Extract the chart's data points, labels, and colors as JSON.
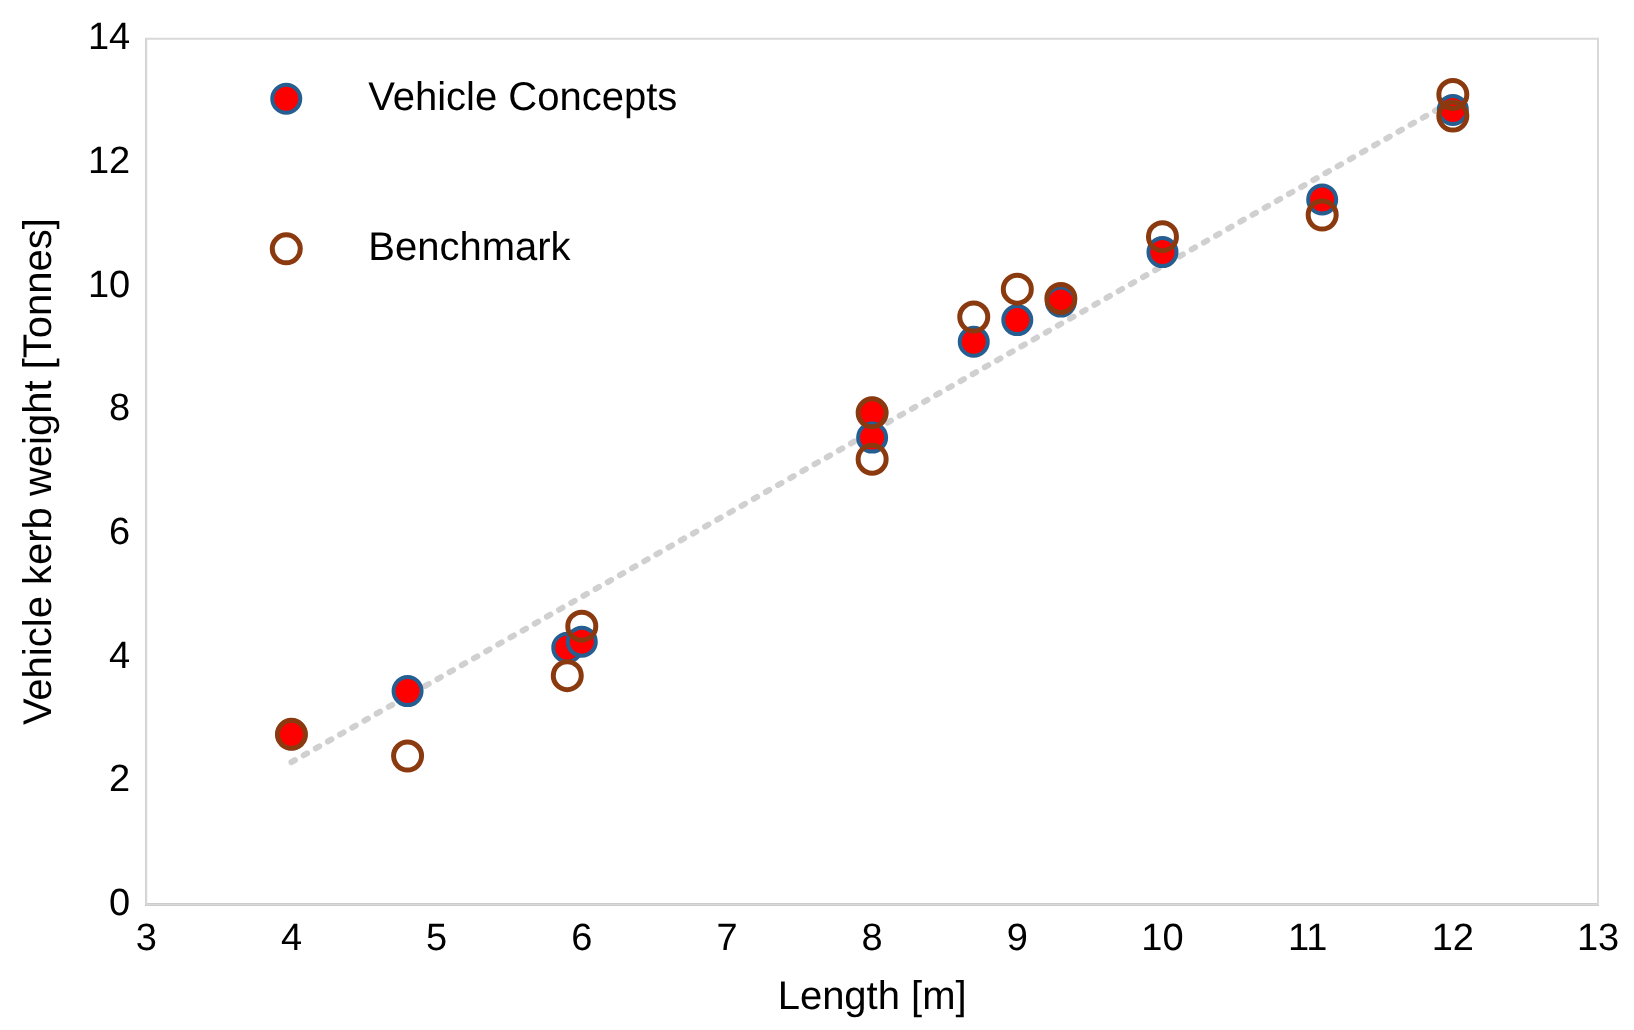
{
  "chart_data": {
    "type": "scatter",
    "xlabel": "Length [m]",
    "ylabel": "Vehicle kerb weight [Tonnes]",
    "xlim": [
      3,
      13
    ],
    "xticks": [
      3,
      4,
      5,
      6,
      7,
      8,
      9,
      10,
      11,
      12,
      13
    ],
    "ylim": [
      0,
      14
    ],
    "yticks": [
      0,
      2,
      4,
      6,
      8,
      10,
      12,
      14
    ],
    "grid": false,
    "legend": "top left",
    "marker": "circle",
    "series": [
      {
        "name": "Vehicle Concepts",
        "color": "#ff0000",
        "x": [
          4,
          4.8,
          5.9,
          6,
          8,
          8,
          8.7,
          9,
          9.3,
          10,
          11.1,
          12
        ],
        "values": [
          2.75,
          3.45,
          4.15,
          4.25,
          7.95,
          7.55,
          9.1,
          9.45,
          9.75,
          10.55,
          11.4,
          12.85
        ]
      },
      {
        "name": "Benchmark",
        "color": "#8b3a0f",
        "x": [
          4,
          4.8,
          5.9,
          6,
          8,
          8,
          8.7,
          9,
          9.3,
          10,
          11.1,
          12,
          12
        ],
        "values": [
          2.75,
          2.4,
          3.7,
          4.5,
          7.95,
          7.2,
          9.5,
          9.95,
          9.8,
          10.8,
          11.15,
          13.1,
          12.75
        ]
      },
      {
        "type": "line",
        "color": "#d0d0d0",
        "line_style": "dotted",
        "marker": "none",
        "x": [
          4,
          12
        ],
        "values": [
          2.3,
          13.0
        ]
      }
    ]
  }
}
